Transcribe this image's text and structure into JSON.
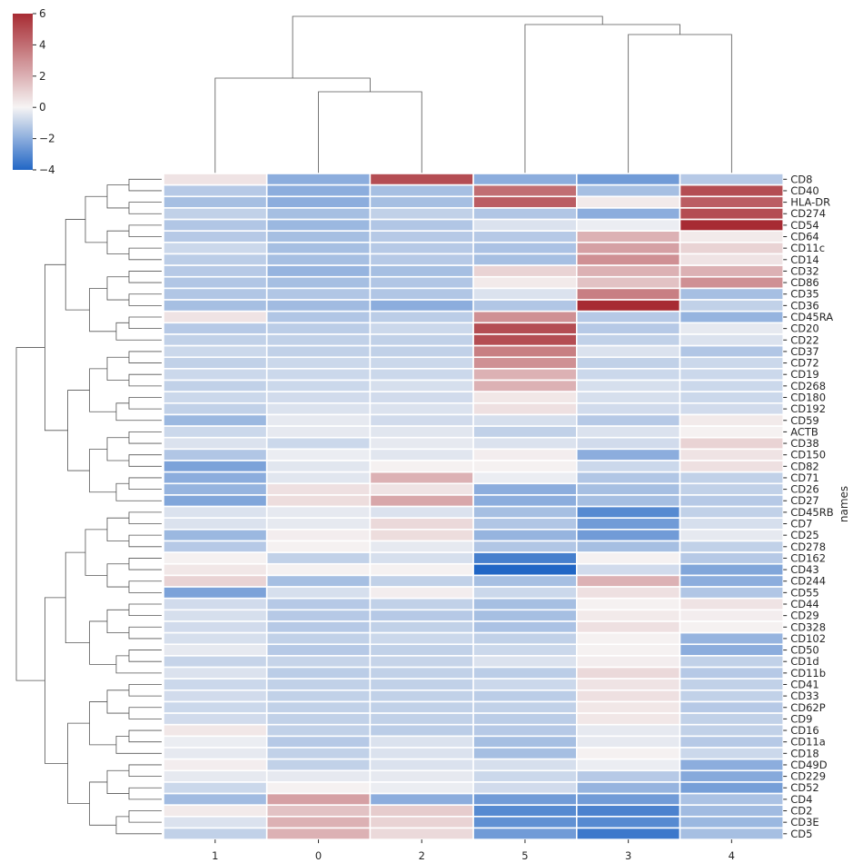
{
  "chart_data": {
    "type": "heatmap",
    "title": "",
    "ylabel": "names",
    "xlabel": "",
    "columns": [
      "1",
      "0",
      "2",
      "5",
      "3",
      "4"
    ],
    "rows": [
      "CD8",
      "CD40",
      "HLA-DR",
      "CD274",
      "CD54",
      "CD64",
      "CD11c",
      "CD14",
      "CD32",
      "CD86",
      "CD35",
      "CD36",
      "CD45RA",
      "CD20",
      "CD22",
      "CD37",
      "CD72",
      "CD19",
      "CD268",
      "CD180",
      "CD192",
      "CD59",
      "ACTB",
      "CD38",
      "CD150",
      "CD82",
      "CD71",
      "CD26",
      "CD27",
      "CD45RB",
      "CD7",
      "CD25",
      "CD278",
      "CD162",
      "CD43",
      "CD244",
      "CD55",
      "CD44",
      "CD29",
      "CD328",
      "CD102",
      "CD50",
      "CD1d",
      "CD11b",
      "CD41",
      "CD33",
      "CD62P",
      "CD9",
      "CD16",
      "CD11a",
      "CD18",
      "CD49D",
      "CD229",
      "CD52",
      "CD4",
      "CD2",
      "CD3E",
      "CD5"
    ],
    "values": [
      [
        0.5,
        -2,
        5,
        -2,
        -2.5,
        -1.2
      ],
      [
        -1.2,
        -2,
        -1.5,
        4,
        -1.5,
        5
      ],
      [
        -1.5,
        -2,
        -1.5,
        4.5,
        0.3,
        4.5
      ],
      [
        -1,
        -1.5,
        -1,
        -1.3,
        -2,
        5
      ],
      [
        -1.3,
        -1.7,
        -1.3,
        -0.5,
        -0.2,
        6
      ],
      [
        -1.2,
        -1.5,
        -1.2,
        -1.2,
        2,
        0.3
      ],
      [
        -0.8,
        -1.5,
        -1.2,
        -1.4,
        2.5,
        1
      ],
      [
        -1.1,
        -1.5,
        -1.2,
        -1.5,
        3,
        0.5
      ],
      [
        -1.2,
        -1.8,
        -1.5,
        1,
        2,
        2
      ],
      [
        -1.3,
        -1.5,
        -1.3,
        0.3,
        1.5,
        3
      ],
      [
        -1.3,
        -1.3,
        -1.3,
        -0.5,
        3.5,
        -1.5
      ],
      [
        -1.5,
        -1.6,
        -2,
        -1.3,
        6,
        -1
      ],
      [
        0.5,
        -1.3,
        -1.1,
        3,
        -1.2,
        -1.8
      ],
      [
        -1.2,
        -1.1,
        -0.8,
        5,
        -1.2,
        -0.3
      ],
      [
        -1,
        -1,
        -1,
        5,
        -1,
        -0.5
      ],
      [
        -0.8,
        -1,
        -1,
        3.5,
        -0.5,
        -1.3
      ],
      [
        -1,
        -0.8,
        -0.8,
        3,
        -1,
        -0.8
      ],
      [
        -0.8,
        -0.8,
        -0.8,
        2,
        -0.8,
        -0.8
      ],
      [
        -1,
        -0.8,
        -0.6,
        2,
        -0.6,
        -0.8
      ],
      [
        -0.8,
        -0.7,
        -0.7,
        0.4,
        -0.6,
        -0.8
      ],
      [
        -1,
        -0.5,
        -0.5,
        0.6,
        -0.7,
        -0.7
      ],
      [
        -1.7,
        -0.3,
        -0.7,
        -0.6,
        -1.2,
        0.3
      ],
      [
        -0.8,
        -0.3,
        -0.4,
        -1,
        -0.5,
        0.1
      ],
      [
        -0.5,
        -0.8,
        -0.3,
        -0.5,
        -0.7,
        1
      ],
      [
        -1.3,
        -0.2,
        -0.4,
        0.2,
        -2,
        0.5
      ],
      [
        -2.3,
        -0.4,
        0.1,
        0.1,
        -0.8,
        0.6
      ],
      [
        -2,
        -0.4,
        2,
        -0.2,
        -1.3,
        -1
      ],
      [
        -1.8,
        0.6,
        0.5,
        -2,
        -1.5,
        -1
      ],
      [
        -2.2,
        0.7,
        2.3,
        -2,
        -1.5,
        -1.2
      ],
      [
        -0.5,
        -0.3,
        -0.5,
        -1.5,
        -3,
        -1
      ],
      [
        -0.5,
        -0.3,
        0.8,
        -1.3,
        -2.5,
        -0.6
      ],
      [
        -1.7,
        0.2,
        0.7,
        -1.8,
        -2.5,
        -0.3
      ],
      [
        -1.2,
        0.1,
        -0.3,
        -1.3,
        -1.5,
        -1
      ],
      [
        0.1,
        -1,
        -0.6,
        -3.3,
        0.1,
        -1.2
      ],
      [
        0.4,
        0.1,
        0.1,
        -4,
        -0.7,
        -2.2
      ],
      [
        1,
        -1.5,
        -1,
        -1.5,
        2,
        -2
      ],
      [
        -2.3,
        -0.6,
        0.2,
        -0.8,
        0.6,
        -1.3
      ],
      [
        -0.7,
        -1.2,
        -1,
        -1.5,
        0.1,
        0.5
      ],
      [
        -0.6,
        -1.2,
        -1.2,
        -1.5,
        0.3,
        0.2
      ],
      [
        -0.7,
        -1.2,
        -1,
        -1.4,
        0.6,
        0.1
      ],
      [
        -0.6,
        -1,
        -0.8,
        -1,
        0.1,
        -1.8
      ],
      [
        -0.3,
        -1.2,
        -1,
        -0.8,
        0.1,
        -2
      ],
      [
        -0.9,
        -0.9,
        -0.9,
        -0.5,
        0.2,
        -1
      ],
      [
        -0.5,
        -1.1,
        -1,
        -1.1,
        0.8,
        -1.2
      ],
      [
        -0.8,
        -1,
        -1,
        -0.8,
        0.5,
        -1
      ],
      [
        -0.7,
        -1,
        -1,
        -1.1,
        0.6,
        -1
      ],
      [
        -0.8,
        -1,
        -1,
        -1,
        0.4,
        -1.2
      ],
      [
        -0.7,
        -1,
        -1,
        -1.1,
        0.4,
        -1
      ],
      [
        0.4,
        -1,
        -1.1,
        -1.2,
        -0.3,
        -1
      ],
      [
        -0.2,
        -1.2,
        -0.5,
        -1.5,
        -0.3,
        -1.2
      ],
      [
        -0.3,
        -1,
        -0.5,
        -1.5,
        0.1,
        -0.8
      ],
      [
        0.2,
        -1,
        -0.5,
        -0.6,
        -0.2,
        -2
      ],
      [
        -0.3,
        -0.3,
        -0.3,
        -0.8,
        -1.2,
        -2.1
      ],
      [
        -0.8,
        0.1,
        -0.2,
        -0.7,
        -1.8,
        -2.4
      ],
      [
        -1.6,
        2.5,
        -2,
        -2.5,
        -2.5,
        -1.4
      ],
      [
        0.3,
        1.5,
        1.2,
        -3,
        -3.2,
        -1.6
      ],
      [
        -0.5,
        2,
        1,
        -2.8,
        -3,
        -1.7
      ],
      [
        -1,
        2,
        0.8,
        -2.5,
        -3.5,
        -1.5
      ]
    ],
    "colorbar": {
      "min": -4,
      "max": 6,
      "ticks": [
        "6",
        "4",
        "2",
        "0",
        "−2",
        "−4"
      ],
      "tickValues": [
        6,
        4,
        2,
        0,
        -2,
        -4
      ]
    },
    "colormap": {
      "low": "#2166c5",
      "mid": "#f6f4f4",
      "high": "#a72b33",
      "center": 0
    },
    "grid": false,
    "legend": "colorbar top-left"
  }
}
